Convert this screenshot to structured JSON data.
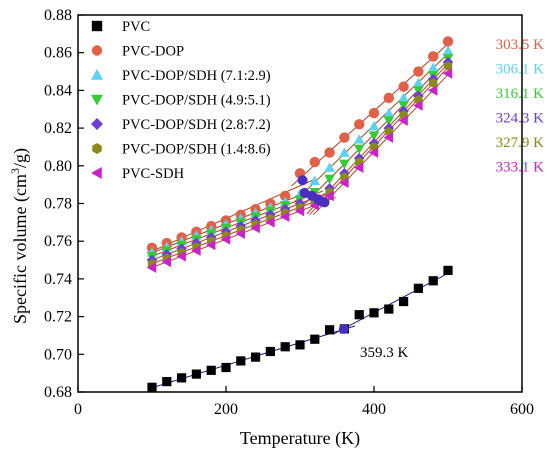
{
  "chart_data": {
    "type": "scatter",
    "xlabel": "Temperature (K)",
    "ylabel_main": "Specific volume (cm",
    "ylabel_sup": "3",
    "ylabel_end": "/g)",
    "xlim": [
      0,
      600
    ],
    "ylim": [
      0.68,
      0.88
    ],
    "x_ticks": [
      0,
      200,
      400,
      600
    ],
    "y_ticks": [
      0.68,
      0.7,
      0.72,
      0.74,
      0.76,
      0.78,
      0.8,
      0.82,
      0.84,
      0.86,
      0.88
    ],
    "x_tick_labels": [
      "0",
      "200",
      "400",
      "600"
    ],
    "y_tick_labels": [
      "0.68",
      "0.70",
      "0.72",
      "0.74",
      "0.76",
      "0.78",
      "0.80",
      "0.82",
      "0.84",
      "0.86",
      "0.88"
    ],
    "grid": false,
    "legend_position": "upper-left",
    "series": [
      {
        "name": "PVC",
        "marker": "square",
        "color": "#000000",
        "x": [
          100,
          120,
          140,
          160,
          180,
          200,
          220,
          240,
          260,
          280,
          300,
          320,
          340,
          360,
          380,
          400,
          420,
          440,
          460,
          480,
          500
        ],
        "y": [
          0.6825,
          0.6855,
          0.6875,
          0.6895,
          0.6915,
          0.693,
          0.6965,
          0.6985,
          0.7015,
          0.704,
          0.705,
          0.708,
          0.713,
          0.7135,
          0.721,
          0.722,
          0.724,
          0.728,
          0.735,
          0.739,
          0.7445
        ],
        "tg": 359.3,
        "tg_label": "359.3 K"
      },
      {
        "name": "PVC-DOP",
        "marker": "circle",
        "color": "#e06048",
        "x": [
          100,
          120,
          140,
          160,
          180,
          200,
          220,
          240,
          260,
          280,
          300,
          320,
          340,
          360,
          380,
          400,
          420,
          440,
          460,
          480,
          500
        ],
        "y": [
          0.7565,
          0.759,
          0.762,
          0.765,
          0.768,
          0.771,
          0.774,
          0.777,
          0.78,
          0.784,
          0.796,
          0.802,
          0.807,
          0.815,
          0.822,
          0.828,
          0.836,
          0.842,
          0.85,
          0.858,
          0.866
        ],
        "tg": 303.5,
        "tg_label": "303.5 K"
      },
      {
        "name": "PVC-DOP/SDH (7.1:2.9)",
        "marker": "triangle-up",
        "color": "#5ad2f0",
        "x": [
          100,
          120,
          140,
          160,
          180,
          200,
          220,
          240,
          260,
          280,
          300,
          320,
          340,
          360,
          380,
          400,
          420,
          440,
          460,
          480,
          500
        ],
        "y": [
          0.754,
          0.757,
          0.76,
          0.763,
          0.766,
          0.769,
          0.772,
          0.775,
          0.778,
          0.781,
          0.785,
          0.792,
          0.799,
          0.807,
          0.814,
          0.821,
          0.828,
          0.836,
          0.844,
          0.852,
          0.861
        ],
        "tg": 306.1,
        "tg_label": "306.1 K"
      },
      {
        "name": "PVC-DOP/SDH (4.9:5.1)",
        "marker": "triangle-down",
        "color": "#33cc33",
        "x": [
          100,
          120,
          140,
          160,
          180,
          200,
          220,
          240,
          260,
          280,
          300,
          320,
          340,
          360,
          380,
          400,
          420,
          440,
          460,
          480,
          500
        ],
        "y": [
          0.752,
          0.755,
          0.758,
          0.761,
          0.764,
          0.767,
          0.77,
          0.773,
          0.776,
          0.779,
          0.782,
          0.786,
          0.793,
          0.801,
          0.809,
          0.816,
          0.824,
          0.832,
          0.84,
          0.848,
          0.857
        ],
        "tg": 316.1,
        "tg_label": "316.1 K"
      },
      {
        "name": "PVC-DOP/SDH (2.8:7.2)",
        "marker": "diamond",
        "color": "#6a3ed8",
        "x": [
          100,
          120,
          140,
          160,
          180,
          200,
          220,
          240,
          260,
          280,
          300,
          320,
          340,
          360,
          380,
          400,
          420,
          440,
          460,
          480,
          500
        ],
        "y": [
          0.75,
          0.753,
          0.756,
          0.759,
          0.762,
          0.765,
          0.768,
          0.771,
          0.774,
          0.777,
          0.78,
          0.783,
          0.788,
          0.796,
          0.804,
          0.812,
          0.82,
          0.829,
          0.837,
          0.846,
          0.855
        ],
        "tg": 324.3,
        "tg_label": "324.3 K"
      },
      {
        "name": "PVC-DOP/SDH (1.4:8.6)",
        "marker": "hexagon",
        "color": "#8a8a1a",
        "x": [
          100,
          120,
          140,
          160,
          180,
          200,
          220,
          240,
          260,
          280,
          300,
          320,
          340,
          360,
          380,
          400,
          420,
          440,
          460,
          480,
          500
        ],
        "y": [
          0.748,
          0.751,
          0.754,
          0.757,
          0.76,
          0.763,
          0.766,
          0.769,
          0.772,
          0.775,
          0.778,
          0.781,
          0.786,
          0.794,
          0.802,
          0.81,
          0.818,
          0.827,
          0.835,
          0.844,
          0.853
        ],
        "tg": 327.9,
        "tg_label": "327.9 K"
      },
      {
        "name": "PVC-SDH",
        "marker": "triangle-left",
        "color": "#cc22cc",
        "x": [
          100,
          120,
          140,
          160,
          180,
          200,
          220,
          240,
          260,
          280,
          300,
          320,
          340,
          360,
          380,
          400,
          420,
          440,
          460,
          480,
          500
        ],
        "y": [
          0.746,
          0.749,
          0.752,
          0.755,
          0.758,
          0.761,
          0.764,
          0.767,
          0.77,
          0.773,
          0.776,
          0.779,
          0.784,
          0.791,
          0.799,
          0.807,
          0.815,
          0.824,
          0.832,
          0.84,
          0.849
        ],
        "tg": 333.1,
        "tg_label": "333.1 K"
      }
    ],
    "tg_marker_color": "#4a2ec0"
  }
}
